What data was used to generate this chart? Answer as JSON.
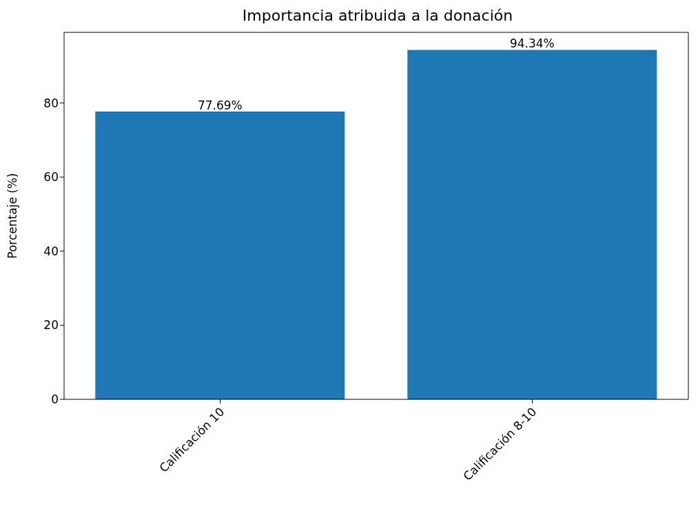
{
  "chart_data": {
    "type": "bar",
    "title": "Importancia atribuida a la donación",
    "ylabel": "Porcentaje (%)",
    "categories": [
      "Calificación 10",
      "Calificación 8-10"
    ],
    "values": [
      77.69,
      94.34
    ],
    "value_labels": [
      "77.69%",
      "94.34%"
    ],
    "color": "#1f77b4",
    "ylim": [
      0,
      99.06
    ],
    "yticks": [
      0,
      20,
      40,
      60,
      80
    ],
    "grid": false,
    "legend": false
  }
}
